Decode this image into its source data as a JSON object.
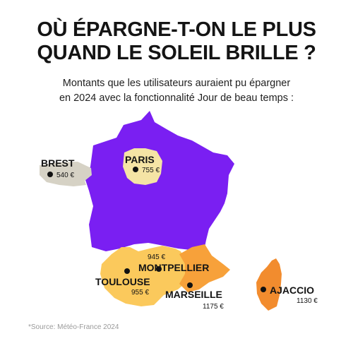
{
  "title": {
    "line1": "OÙ ÉPARGNE-T-ON LE PLUS",
    "line2": "QUAND LE SOLEIL BRILLE ?"
  },
  "subtitle": {
    "line1": "Montants que les utilisateurs auraient pu épargner",
    "line2": "en 2024 avec la fonctionnalité Jour de beau temps :"
  },
  "cities": [
    {
      "name": "BREST",
      "amount": "540 €"
    },
    {
      "name": "PARIS",
      "amount": "755 €"
    },
    {
      "name": "MONTPELLIER",
      "amount": "945 €"
    },
    {
      "name": "TOULOUSE",
      "amount": "955 €"
    },
    {
      "name": "MARSEILLE",
      "amount": "1175 €"
    },
    {
      "name": "AJACCIO",
      "amount": "1130 €"
    }
  ],
  "source": "*Source: Météo-France 2024",
  "colors": {
    "france": "#7a1ff2",
    "brest": "#d6d2c5",
    "paris": "#f5e4a5",
    "toulouse_montpellier": "#fbc95c",
    "marseille": "#f7a13a",
    "ajaccio": "#f28c2e",
    "dot": "#111111",
    "text": "#141414"
  }
}
